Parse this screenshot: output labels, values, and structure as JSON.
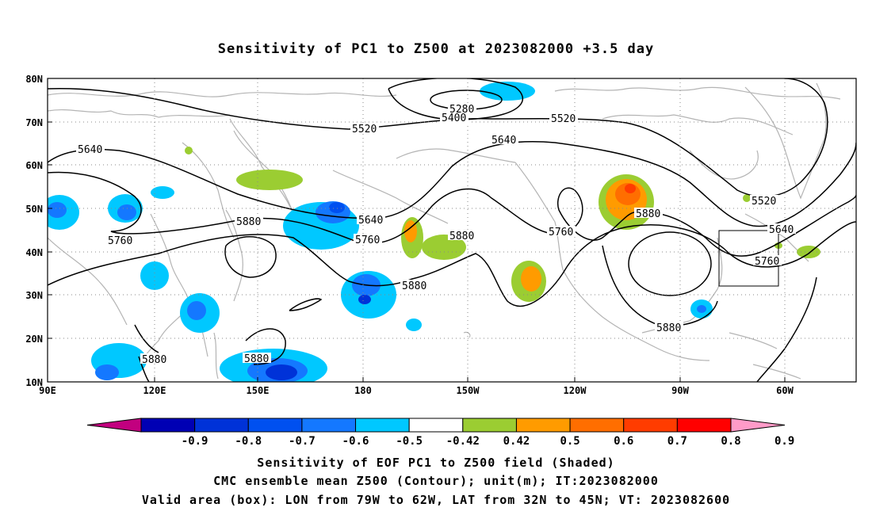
{
  "title": "Sensitivity of PC1 to Z500 at 2023082000 +3.5 day",
  "lat_labels": [
    "80N",
    "70N",
    "60N",
    "50N",
    "40N",
    "30N",
    "20N",
    "10N"
  ],
  "lon_labels": [
    "90E",
    "120E",
    "150E",
    "180",
    "150W",
    "120W",
    "90W",
    "60W"
  ],
  "contour_labels": [
    "5280",
    "5400",
    "5520",
    "5520",
    "5520",
    "5640",
    "5640",
    "5640",
    "5640",
    "5760",
    "5760",
    "5760",
    "5760",
    "5880",
    "5880",
    "5880",
    "5880",
    "5880",
    "5880",
    "5880"
  ],
  "colorbar": {
    "ticks": [
      "-0.9",
      "-0.8",
      "-0.7",
      "-0.6",
      "-0.5",
      "-0.42",
      "0.42",
      "0.5",
      "0.6",
      "0.7",
      "0.8",
      "0.9"
    ],
    "colors": [
      "#c2007f",
      "#0000b4",
      "#0032d8",
      "#0050f0",
      "#1478ff",
      "#00c8ff",
      "#ffffff",
      "#9bcd32",
      "#ff9b00",
      "#ff6e00",
      "#ff3c00",
      "#ff0000",
      "#ff9bc8"
    ]
  },
  "footer": {
    "line1": "Sensitivity of EOF PC1 to Z500 field (Shaded)",
    "line2": "CMC ensemble mean Z500 (Contour); unit(m); IT:2023082000",
    "line3": "Valid area (box): LON from 79W to 62W, LAT from 32N to 45N; VT: 2023082600"
  },
  "valid_box": {
    "lon_min": -79,
    "lon_max": -62,
    "lat_min": 32,
    "lat_max": 45
  },
  "colors": {
    "contour": "#000000",
    "coast": "#b4b4b4",
    "grid": "#888888"
  }
}
